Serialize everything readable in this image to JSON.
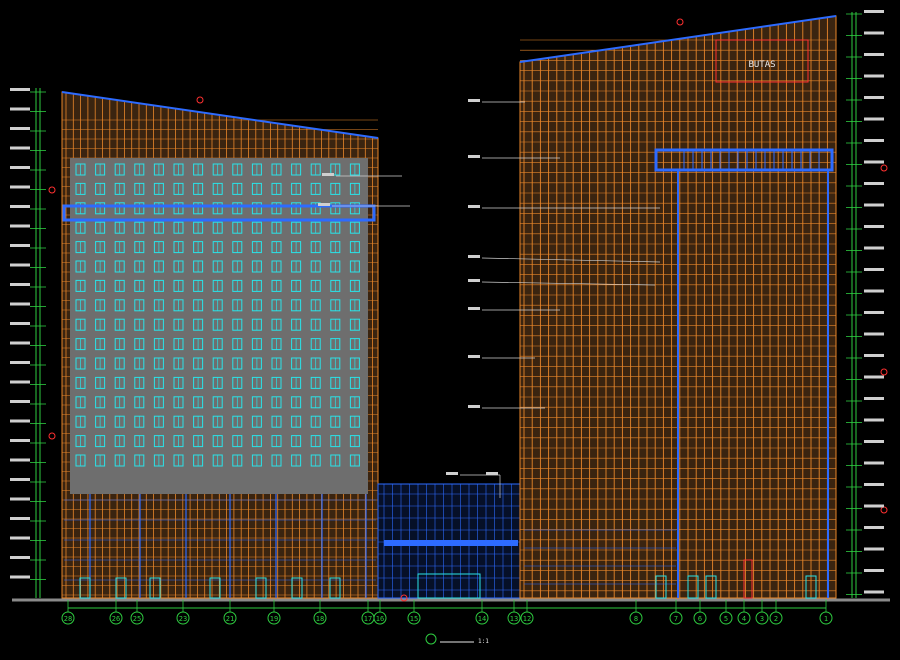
{
  "drawing": {
    "sign_text": "BUTAS",
    "axis_labels": [
      "28",
      "26",
      "25",
      "23",
      "21",
      "19",
      "18",
      "17",
      "16",
      "15",
      "14",
      "13",
      "12",
      "8",
      "7",
      "6",
      "5",
      "4",
      "3",
      "2",
      "1"
    ],
    "title_scale": "1:1",
    "colors": {
      "background": "#000000",
      "facade_orange": "#e8862a",
      "facade_blue": "#2d6bff",
      "window_cyan": "#29e3e8",
      "panel_grey": "#7d7d7d",
      "dim_green": "#2ecc40",
      "callout_red": "#ff3030",
      "label_white": "#e8e8e8"
    }
  }
}
